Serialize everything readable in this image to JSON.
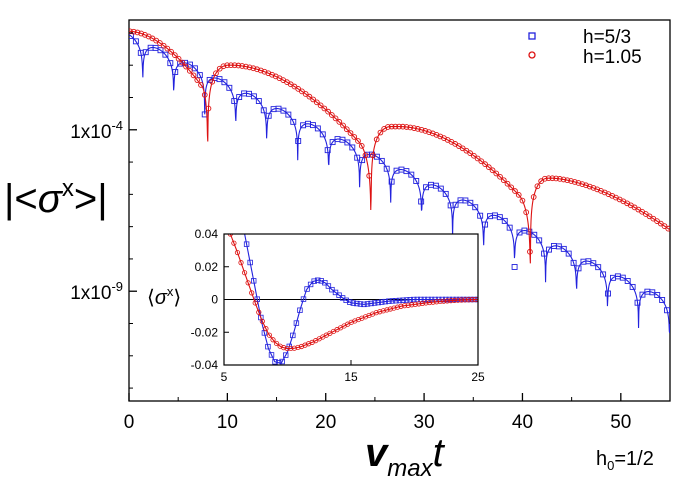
{
  "chart_data": [
    {
      "id": "main",
      "type": "line",
      "xlabel": "v_max t",
      "xlabel_parts": {
        "base": "v",
        "sub": "max",
        "tail": "t"
      },
      "ylabel": "|<σx>|",
      "ylabel_parts": {
        "open": "|<",
        "sigma": "σ",
        "sup": "x",
        "close": ">|"
      },
      "yscale": "log",
      "xlim": [
        0,
        55
      ],
      "ylim_log10": [
        -12.4,
        -0.6
      ],
      "x_ticks": [
        0,
        10,
        20,
        30,
        40,
        50
      ],
      "x_tick_labels": [
        "0",
        "10",
        "20",
        "30",
        "40",
        "50"
      ],
      "y_ticks_log10": [
        -4,
        -9
      ],
      "y_tick_labels": [
        {
          "base": "1x10",
          "exp": "-4"
        },
        {
          "base": "1x10",
          "exp": "-9"
        }
      ],
      "legend_position": "top-right",
      "annotation": {
        "base": "h",
        "sub": "0",
        "tail": "=1/2",
        "text": "h0=1/2"
      },
      "series": [
        {
          "name": "h=5/3",
          "label": "h=5/3",
          "color": "#2222dd",
          "marker": "square",
          "envelope": {
            "log10_at_0": -1.05,
            "slope_per_unit": -0.15
          },
          "first_node": 1.4,
          "node_spacing": 3.15,
          "node_dip": 1.5
        },
        {
          "name": "h=1.05",
          "label": "h=1.05",
          "color": "#dd1111",
          "marker": "circle",
          "lobes": [
            {
              "x_start": 0.0,
              "x_end": 8.0,
              "peak_x": 0.0,
              "peak_log10": -0.95
            },
            {
              "x_start": 8.0,
              "x_end": 24.6,
              "peak_x": 10.5,
              "peak_log10": -2.0
            },
            {
              "x_start": 24.6,
              "x_end": 40.8,
              "peak_x": 27.5,
              "peak_log10": -3.9
            },
            {
              "x_start": 40.8,
              "x_end": 55.0,
              "peak_x": 43.0,
              "peak_log10": -5.5
            }
          ],
          "tail_end_log10": -7.1
        }
      ]
    },
    {
      "id": "inset",
      "type": "line",
      "ylabel": "⟨σx⟩",
      "ylabel_parts": {
        "open": "⟨",
        "sigma": "σ",
        "sup": "x",
        "close": "⟩"
      },
      "xlim": [
        5,
        25
      ],
      "ylim": [
        -0.04,
        0.04
      ],
      "x_ticks": [
        5,
        15,
        25
      ],
      "x_tick_labels": [
        "5",
        "15",
        "25"
      ],
      "y_ticks": [
        0.04,
        0.02,
        0,
        -0.02,
        -0.04
      ],
      "y_tick_labels": [
        "0.04",
        "0.02",
        "0",
        "-0.02",
        "-0.04"
      ],
      "zero_line": true,
      "series": [
        {
          "name": "h=5/3",
          "color": "#2222dd",
          "marker": "square",
          "x": [
            6.5,
            7.0,
            7.5,
            8.0,
            8.5,
            9.0,
            9.5,
            10.0,
            10.5,
            11.0,
            11.5,
            12.0,
            12.5,
            13.0,
            13.5,
            14.0,
            14.5,
            15.0,
            16.0,
            17.0,
            18.0,
            19.0,
            20.0,
            22.0,
            25.0
          ],
          "y": [
            0.045,
            0.025,
            0.005,
            -0.015,
            -0.03,
            -0.038,
            -0.039,
            -0.032,
            -0.02,
            -0.006,
            0.006,
            0.011,
            0.012,
            0.01,
            0.006,
            0.003,
            0.0,
            -0.002,
            -0.003,
            -0.002,
            -0.001,
            -0.0005,
            0.0,
            0.0,
            0.0
          ]
        },
        {
          "name": "h=1.05",
          "color": "#dd1111",
          "marker": "circle",
          "x": [
            5.5,
            6.0,
            6.5,
            7.0,
            7.5,
            8.0,
            8.5,
            9.0,
            9.5,
            10.0,
            10.5,
            11.0,
            12.0,
            13.0,
            14.0,
            15.0,
            16.0,
            17.0,
            18.0,
            19.0,
            20.0,
            21.0,
            22.0,
            23.0,
            24.0,
            25.0
          ],
          "y": [
            0.04,
            0.03,
            0.019,
            0.008,
            -0.003,
            -0.013,
            -0.021,
            -0.026,
            -0.029,
            -0.03,
            -0.0298,
            -0.029,
            -0.026,
            -0.022,
            -0.018,
            -0.014,
            -0.011,
            -0.008,
            -0.006,
            -0.004,
            -0.003,
            -0.002,
            -0.0012,
            -0.0006,
            -0.0002,
            0.0
          ]
        }
      ]
    }
  ]
}
